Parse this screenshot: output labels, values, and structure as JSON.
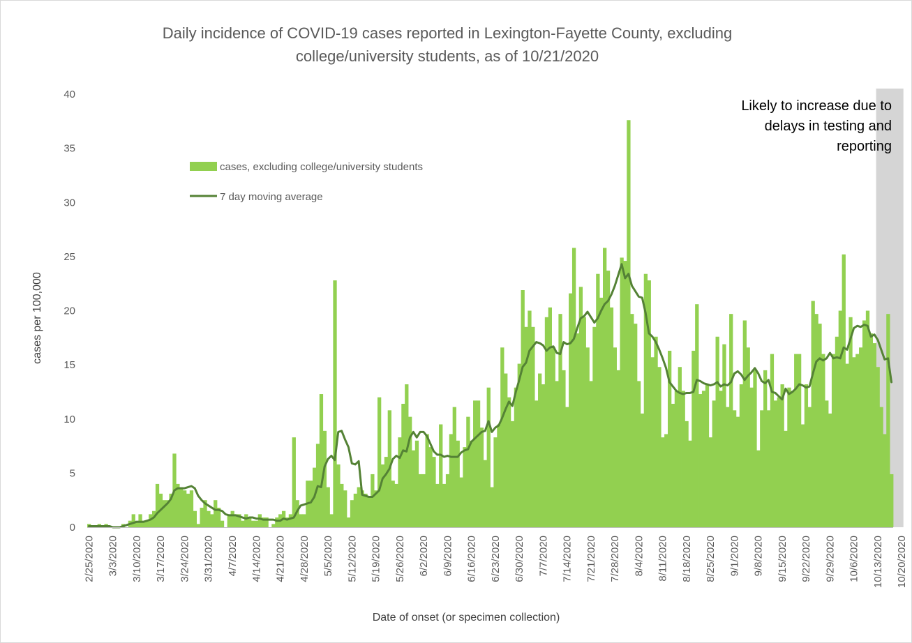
{
  "chart_data": {
    "type": "bar",
    "title": [
      "Daily incidence of COVID-19 cases reported in Lexington-Fayette County, excluding",
      "college/university students, as of 10/21/2020"
    ],
    "xlabel": "Date of onset (or specimen collection)",
    "ylabel": "cases per 100,000",
    "ylim": [
      0,
      40
    ],
    "y_ticks": [
      0,
      5,
      10,
      15,
      20,
      25,
      30,
      35,
      40
    ],
    "grid": false,
    "legend_placement": "top-left",
    "start_date": "2020-02-25",
    "x_tick_labels": [
      "2/25/2020",
      "3/3/2020",
      "3/10/2020",
      "3/17/2020",
      "3/24/2020",
      "3/31/2020",
      "4/7/2020",
      "4/14/2020",
      "4/21/2020",
      "4/28/2020",
      "5/5/2020",
      "5/12/2020",
      "5/19/2020",
      "5/26/2020",
      "6/2/2020",
      "6/9/2020",
      "6/16/2020",
      "6/23/2020",
      "6/30/2020",
      "7/7/2020",
      "7/14/2020",
      "7/21/2020",
      "7/28/2020",
      "8/4/2020",
      "8/11/2020",
      "8/18/2020",
      "8/25/2020",
      "9/1/2020",
      "9/8/2020",
      "9/15/2020",
      "9/22/2020",
      "9/29/2020",
      "10/6/2020",
      "10/13/2020",
      "10/20/2020"
    ],
    "series": [
      {
        "name": "cases, excluding college/university students",
        "type": "bar",
        "color": "#92d050",
        "values": [
          0.3,
          0,
          0,
          0.3,
          0,
          0.3,
          0,
          0,
          0,
          0,
          0.3,
          0,
          0.6,
          1.2,
          0.6,
          1.2,
          0.6,
          0.6,
          1.2,
          1.5,
          4.0,
          3.1,
          2.5,
          2.5,
          3.1,
          6.8,
          4.0,
          3.7,
          3.4,
          3.1,
          3.4,
          1.5,
          0.3,
          1.8,
          2.5,
          1.5,
          1.2,
          2.5,
          1.8,
          0.6,
          0,
          1.2,
          1.5,
          1.2,
          1.2,
          0.6,
          1.2,
          0.9,
          0.6,
          0.6,
          1.2,
          0.9,
          0.9,
          0,
          0.3,
          0.9,
          1.2,
          1.5,
          0.9,
          1.2,
          8.3,
          2.5,
          1.2,
          1.2,
          4.3,
          4.3,
          5.5,
          7.7,
          12.3,
          8.9,
          3.7,
          1.2,
          22.8,
          5.8,
          4.0,
          3.4,
          0.9,
          2.5,
          3.1,
          3.7,
          3.4,
          3.1,
          2.8,
          4.9,
          3.4,
          12.0,
          5.8,
          6.5,
          10.8,
          4.3,
          4.0,
          8.3,
          11.4,
          13.2,
          10.2,
          7.1,
          8.0,
          4.9,
          4.9,
          8.6,
          7.4,
          6.5,
          4.0,
          9.5,
          4.0,
          4.9,
          8.6,
          11.1,
          8.0,
          4.6,
          7.4,
          10.2,
          8.0,
          11.7,
          11.7,
          9.2,
          6.2,
          12.9,
          3.7,
          8.3,
          9.5,
          16.6,
          14.2,
          12.0,
          9.8,
          12.9,
          15.1,
          21.9,
          18.5,
          20.0,
          18.5,
          11.7,
          14.2,
          13.2,
          19.4,
          20.3,
          16.6,
          13.5,
          19.7,
          14.5,
          11.1,
          21.6,
          25.8,
          17.9,
          22.2,
          19.4,
          16.6,
          13.5,
          18.5,
          23.4,
          21.2,
          25.8,
          23.7,
          20.3,
          16.6,
          14.5,
          24.9,
          24.6,
          37.6,
          19.7,
          18.8,
          13.5,
          10.5,
          23.4,
          22.8,
          15.7,
          17.6,
          14.8,
          8.3,
          8.6,
          16.3,
          11.4,
          12.6,
          14.8,
          12.6,
          9.8,
          8.0,
          16.3,
          20.6,
          12.3,
          12.6,
          13.2,
          8.3,
          11.7,
          17.6,
          12.6,
          16.9,
          11.1,
          19.7,
          10.8,
          10.2,
          13.2,
          19.1,
          16.6,
          12.9,
          14.5,
          7.1,
          10.8,
          14.5,
          10.8,
          16.0,
          11.7,
          12.0,
          13.2,
          8.9,
          12.9,
          12.6,
          16.0,
          16.0,
          9.5,
          13.2,
          11.1,
          20.9,
          19.7,
          18.8,
          16.0,
          11.7,
          10.5,
          16.0,
          17.6,
          20.0,
          25.2,
          15.1,
          19.4,
          15.7,
          16.0,
          16.6,
          19.1,
          20.0,
          17.9,
          17.0,
          14.8,
          11.1,
          8.6,
          19.7,
          4.9
        ]
      },
      {
        "name": "7 day moving average",
        "type": "line",
        "color": "#548235",
        "values": [
          0.1,
          0.1,
          0.1,
          0.1,
          0.1,
          0.1,
          0.1,
          0,
          0,
          0,
          0.1,
          0.2,
          0.3,
          0.4,
          0.5,
          0.5,
          0.5,
          0.6,
          0.7,
          0.9,
          1.3,
          1.6,
          1.9,
          2.2,
          2.6,
          3.4,
          3.6,
          3.6,
          3.6,
          3.7,
          3.8,
          3.6,
          2.9,
          2.5,
          2.2,
          2.0,
          1.8,
          1.6,
          1.6,
          1.5,
          1.2,
          1.1,
          1.1,
          1.1,
          1.0,
          0.9,
          0.8,
          0.9,
          0.9,
          0.8,
          0.8,
          0.7,
          0.7,
          0.7,
          0.7,
          0.6,
          0.6,
          0.8,
          0.7,
          0.8,
          0.9,
          1.5,
          2.0,
          2.1,
          2.2,
          2.3,
          2.8,
          3.8,
          3.7,
          5.6,
          6.3,
          6.6,
          6.2,
          8.8,
          8.9,
          8.1,
          7.4,
          5.9,
          5.8,
          6.1,
          3.0,
          2.9,
          2.8,
          2.8,
          3.1,
          3.4,
          4.5,
          4.9,
          5.4,
          6.3,
          6.6,
          6.4,
          7.1,
          7.0,
          8.3,
          8.8,
          8.3,
          8.8,
          8.8,
          8.4,
          7.7,
          7.0,
          6.7,
          6.7,
          6.5,
          6.6,
          6.5,
          6.5,
          6.5,
          6.9,
          7.1,
          7.2,
          7.9,
          8.2,
          8.5,
          8.8,
          8.9,
          9.8,
          8.8,
          9.2,
          9.4,
          10.1,
          10.9,
          11.6,
          11.2,
          12.5,
          13.6,
          14.8,
          15.2,
          16.3,
          16.7,
          17.1,
          17.0,
          16.8,
          16.3,
          16.6,
          16.7,
          16.1,
          16.0,
          17.1,
          16.9,
          17.0,
          17.4,
          18.4,
          19.3,
          19.5,
          19.9,
          19.4,
          18.9,
          19.3,
          20.0,
          20.6,
          20.9,
          21.5,
          22.3,
          23.3,
          24.3,
          23.0,
          23.4,
          22.3,
          21.8,
          21.3,
          21.2,
          19.8,
          17.9,
          17.6,
          17.1,
          16.4,
          15.6,
          14.7,
          13.4,
          13.0,
          12.6,
          12.4,
          12.3,
          12.4,
          12.4,
          12.5,
          13.6,
          13.5,
          13.3,
          13.2,
          13.1,
          13.2,
          13.4,
          13.0,
          13.2,
          13.1,
          13.4,
          14.2,
          14.4,
          14.1,
          13.6,
          14.0,
          14.3,
          14.7,
          14.2,
          13.5,
          13.3,
          13.6,
          12.5,
          12.4,
          12.1,
          11.8,
          12.8,
          12.3,
          12.5,
          12.8,
          13.2,
          13.1,
          12.9,
          13.0,
          14.2,
          15.3,
          15.6,
          15.4,
          15.6,
          16.1,
          15.6,
          15.7,
          15.6,
          16.6,
          16.4,
          17.4,
          18.4,
          18.6,
          18.5,
          18.7,
          18.6,
          17.6,
          17.8,
          17.3,
          16.4,
          15.5,
          15.6,
          13.4
        ]
      }
    ],
    "shaded_region": {
      "start_date": "2020-10-13",
      "end_date": "2020-10-21",
      "color": "#bfbfbf",
      "label": [
        "Likely to increase due to",
        "delays in testing and",
        "reporting"
      ]
    },
    "annotations": [
      "Likely to increase due to",
      "delays in testing and",
      "reporting"
    ]
  }
}
